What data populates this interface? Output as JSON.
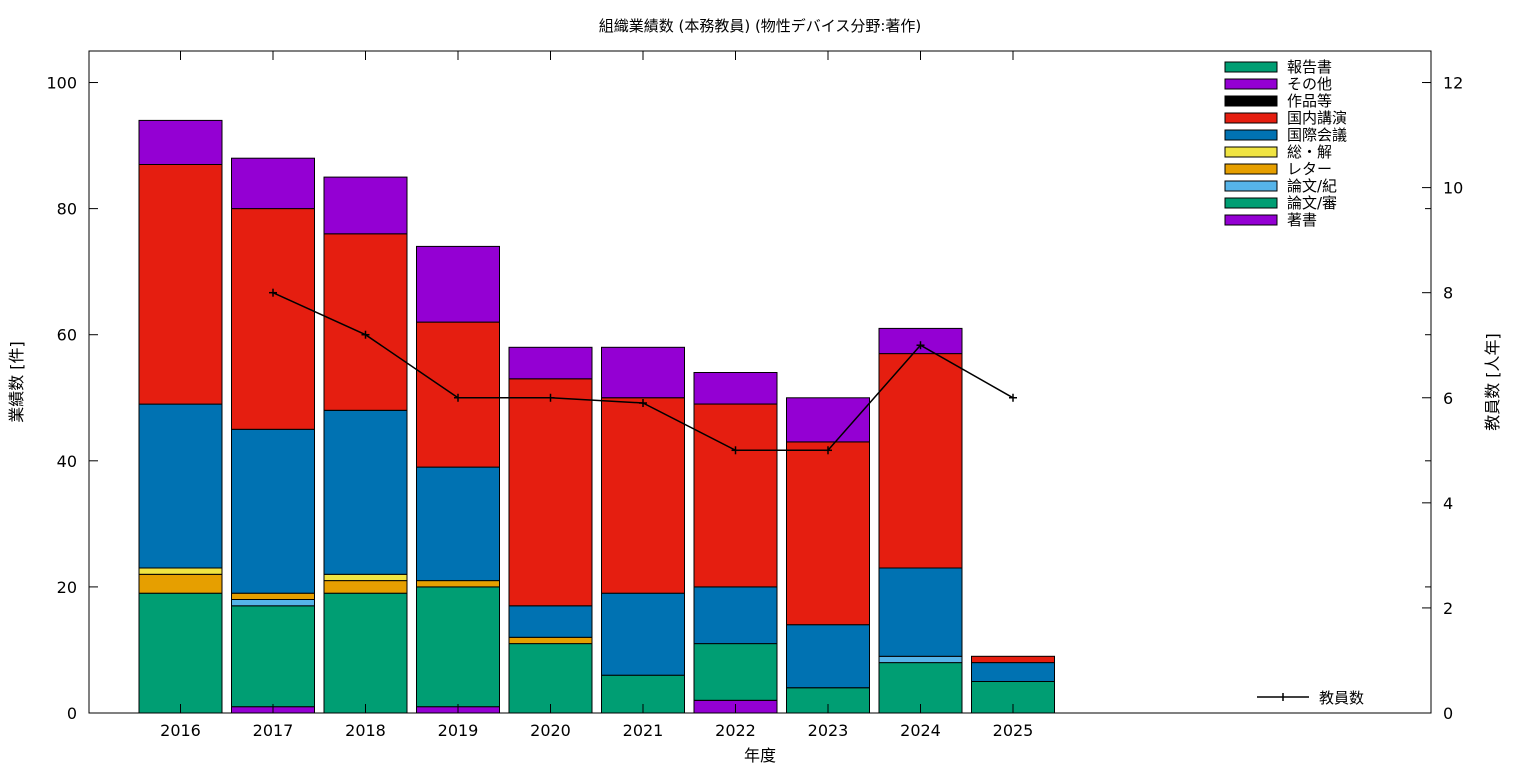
{
  "chart_data": {
    "type": "bar",
    "title": "組織業績数 (本務教員) (物性デバイス分野:著作)",
    "xlabel": "年度",
    "ylabel": "業績数 [件]",
    "y2label": "教員数 [人年]",
    "stacked": true,
    "ylim": [
      0,
      105
    ],
    "y2lim": [
      0,
      12.6
    ],
    "yticks": [
      0,
      20,
      40,
      60,
      80,
      100
    ],
    "y2ticks": [
      0,
      2,
      4,
      6,
      8,
      10,
      12
    ],
    "grid": false,
    "legend_position": "top-right",
    "categories": [
      "2016",
      "2017",
      "2018",
      "2019",
      "2020",
      "2021",
      "2022",
      "2023",
      "2024",
      "2025"
    ],
    "series": [
      {
        "name": "著書",
        "color": "#9400d3",
        "values": [
          0,
          1,
          0,
          1,
          0,
          0,
          2,
          0,
          0,
          0
        ]
      },
      {
        "name": "論文/審",
        "color": "#009e73",
        "values": [
          19,
          16,
          19,
          19,
          11,
          6,
          9,
          4,
          8,
          5
        ]
      },
      {
        "name": "論文/紀",
        "color": "#56b4e9",
        "values": [
          0,
          1,
          0,
          0,
          0,
          0,
          0,
          0,
          1,
          0
        ]
      },
      {
        "name": "レター",
        "color": "#e69f00",
        "values": [
          3,
          1,
          2,
          1,
          1,
          0,
          0,
          0,
          0,
          0
        ]
      },
      {
        "name": "総・解",
        "color": "#f0e442",
        "values": [
          1,
          0,
          1,
          0,
          0,
          0,
          0,
          0,
          0,
          0
        ]
      },
      {
        "name": "国際会議",
        "color": "#0072b2",
        "values": [
          26,
          26,
          26,
          18,
          5,
          13,
          9,
          10,
          14,
          3
        ]
      },
      {
        "name": "国内講演",
        "color": "#e51e10",
        "values": [
          38,
          35,
          28,
          23,
          36,
          31,
          29,
          29,
          34,
          1
        ]
      },
      {
        "name": "作品等",
        "color": "#000000",
        "values": [
          0,
          0,
          0,
          0,
          0,
          0,
          0,
          0,
          0,
          0
        ]
      },
      {
        "name": "その他",
        "color": "#9400d3",
        "values": [
          7,
          8,
          9,
          12,
          5,
          8,
          5,
          7,
          4,
          0
        ]
      },
      {
        "name": "報告書",
        "color": "#009e73",
        "values": [
          0,
          0,
          0,
          0,
          0,
          0,
          0,
          0,
          0,
          0
        ]
      }
    ],
    "line_series": {
      "name": "教員数",
      "color": "#000000",
      "axis": "y2",
      "categories": [
        "2017",
        "2018",
        "2019",
        "2020",
        "2021",
        "2022",
        "2023",
        "2024",
        "2025"
      ],
      "values": [
        8,
        7.2,
        6,
        6,
        5.9,
        5,
        5,
        7,
        6
      ]
    }
  }
}
